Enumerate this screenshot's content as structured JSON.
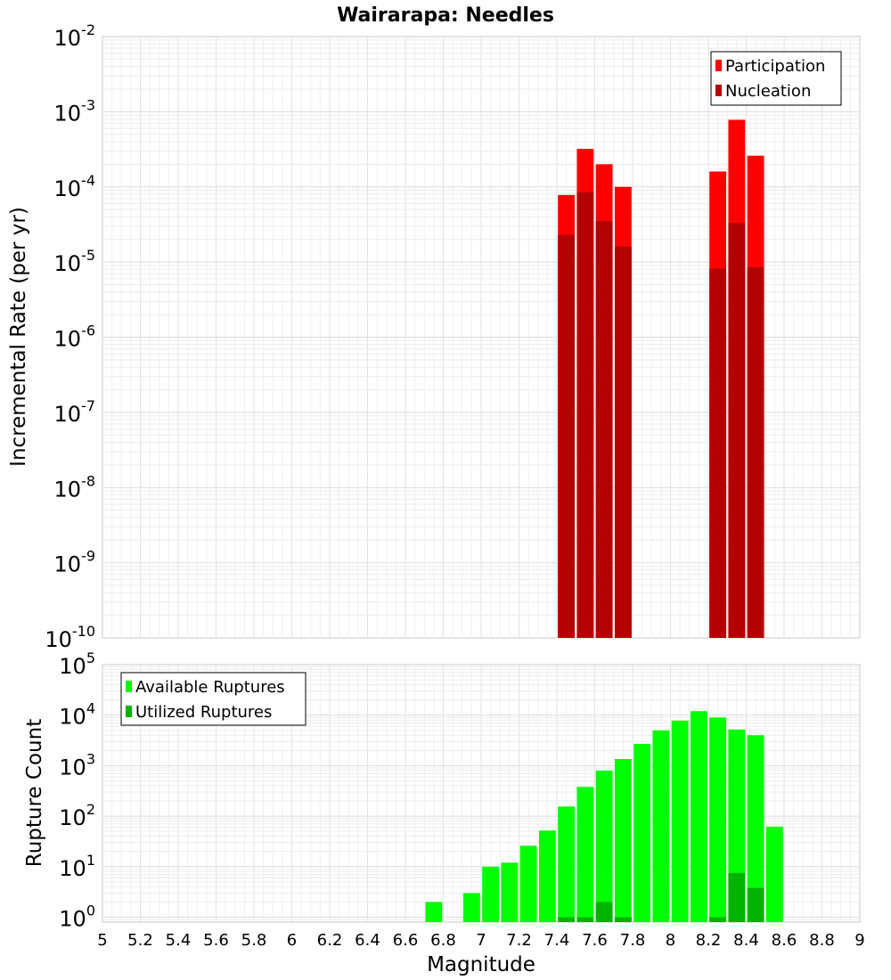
{
  "chart_data": [
    {
      "type": "bar",
      "title": "Wairarapa: Needles",
      "xlabel": "",
      "ylabel": "Incremental Rate (per yr)",
      "yscale": "log",
      "ylim": [
        1e-10,
        0.01
      ],
      "xlim": [
        5,
        9
      ],
      "bin_width": 0.1,
      "grid": true,
      "legend_position": "top-right",
      "series": [
        {
          "name": "Participation",
          "color": "#ff0000",
          "points": [
            [
              7.45,
              7.8e-05
            ],
            [
              7.55,
              0.00032
            ],
            [
              7.65,
              0.0002
            ],
            [
              7.75,
              0.0001
            ],
            [
              8.25,
              0.00016
            ],
            [
              8.35,
              0.00078
            ],
            [
              8.45,
              0.00026
            ]
          ]
        },
        {
          "name": "Nucleation",
          "color": "#b30000",
          "points": [
            [
              7.45,
              2.3e-05
            ],
            [
              7.55,
              8.5e-05
            ],
            [
              7.65,
              3.5e-05
            ],
            [
              7.75,
              1.6e-05
            ],
            [
              8.25,
              8.2e-06
            ],
            [
              8.35,
              3.3e-05
            ],
            [
              8.45,
              8.5e-06
            ]
          ]
        }
      ]
    },
    {
      "type": "bar",
      "title": "",
      "xlabel": "Magnitude",
      "ylabel": "Rupture Count",
      "yscale": "log",
      "ylim": [
        0.8,
        100000.0
      ],
      "xlim": [
        5,
        9
      ],
      "bin_width": 0.1,
      "grid": true,
      "legend_position": "top-left",
      "x_ticks": [
        "5",
        "5.2",
        "5.4",
        "5.6",
        "5.8",
        "6",
        "6.2",
        "6.4",
        "6.6",
        "6.8",
        "7",
        "7.2",
        "7.4",
        "7.6",
        "7.8",
        "8",
        "8.2",
        "8.4",
        "8.6",
        "8.8",
        "9"
      ],
      "series": [
        {
          "name": "Available Ruptures",
          "color": "#00ff00",
          "points": [
            [
              6.75,
              2
            ],
            [
              6.95,
              3
            ],
            [
              7.05,
              10
            ],
            [
              7.15,
              12
            ],
            [
              7.25,
              26
            ],
            [
              7.35,
              52
            ],
            [
              7.45,
              155
            ],
            [
              7.55,
              380
            ],
            [
              7.65,
              800
            ],
            [
              7.75,
              1350
            ],
            [
              7.85,
              2700
            ],
            [
              7.95,
              5000
            ],
            [
              8.05,
              7800
            ],
            [
              8.15,
              12000
            ],
            [
              8.25,
              9000
            ],
            [
              8.35,
              5200
            ],
            [
              8.45,
              4000
            ],
            [
              8.55,
              62
            ]
          ]
        },
        {
          "name": "Utilized Ruptures",
          "color": "#00b300",
          "points": [
            [
              7.45,
              1
            ],
            [
              7.55,
              1
            ],
            [
              7.65,
              2
            ],
            [
              7.75,
              1
            ],
            [
              8.25,
              1
            ],
            [
              8.35,
              7.5
            ],
            [
              8.45,
              3.8
            ]
          ]
        }
      ]
    }
  ]
}
